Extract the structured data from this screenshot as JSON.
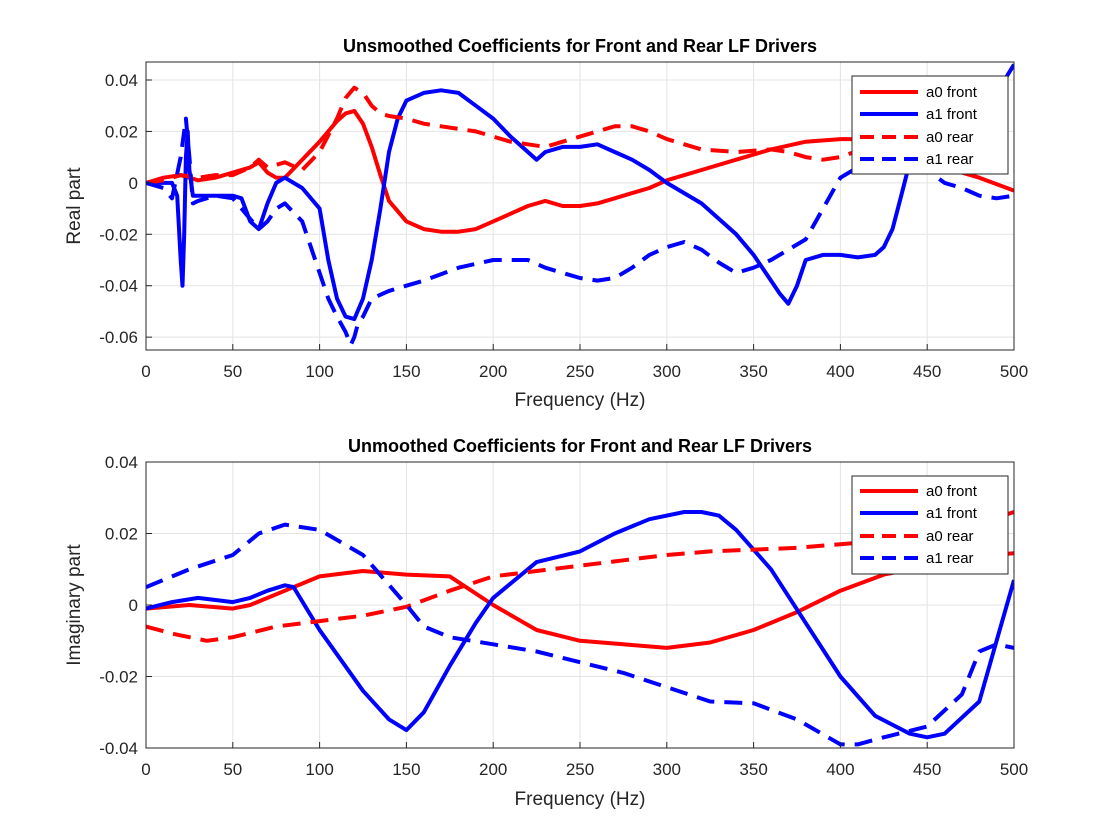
{
  "chart_data": [
    {
      "type": "line",
      "title": "Unsmoothed Coefficients for Front and Rear LF Drivers",
      "xlabel": "Frequency (Hz)",
      "ylabel": "Real part",
      "xlim": [
        0,
        500
      ],
      "ylim": [
        -0.065,
        0.047
      ],
      "xticks": [
        "0",
        "50",
        "100",
        "150",
        "200",
        "250",
        "300",
        "350",
        "400",
        "450",
        "500"
      ],
      "yticks": [
        "-0.06",
        "-0.04",
        "-0.02",
        "0",
        "0.02",
        "0.04"
      ],
      "grid": true,
      "legend_position": "top-right",
      "series": [
        {
          "name": "a0 front",
          "color": "#ff0000",
          "style": "solid",
          "x": [
            0,
            10,
            20,
            30,
            40,
            50,
            60,
            65,
            70,
            75,
            80,
            90,
            100,
            110,
            115,
            120,
            125,
            130,
            135,
            140,
            150,
            160,
            170,
            180,
            190,
            200,
            210,
            220,
            230,
            240,
            250,
            260,
            270,
            280,
            290,
            300,
            320,
            340,
            360,
            380,
            400,
            420,
            440,
            460,
            480,
            500
          ],
          "y": [
            0,
            0.002,
            0.003,
            0.001,
            0.002,
            0.004,
            0.006,
            0.008,
            0.004,
            0.002,
            0.002,
            0.009,
            0.016,
            0.024,
            0.027,
            0.028,
            0.023,
            0.014,
            0.003,
            -0.007,
            -0.015,
            -0.018,
            -0.019,
            -0.019,
            -0.018,
            -0.015,
            -0.012,
            -0.009,
            -0.007,
            -0.009,
            -0.009,
            -0.008,
            -0.006,
            -0.004,
            -0.002,
            0.001,
            0.005,
            0.009,
            0.013,
            0.016,
            0.017,
            0.017,
            0.01,
            0.006,
            0.002,
            -0.003
          ]
        },
        {
          "name": "a1 front",
          "color": "#0000ff",
          "style": "solid",
          "x": [
            0,
            10,
            15,
            18,
            20,
            21,
            22,
            23,
            24,
            25,
            27,
            30,
            40,
            50,
            55,
            60,
            65,
            70,
            75,
            80,
            90,
            100,
            105,
            110,
            115,
            120,
            125,
            130,
            135,
            140,
            145,
            150,
            160,
            170,
            180,
            190,
            200,
            210,
            220,
            225,
            230,
            240,
            250,
            260,
            270,
            280,
            290,
            300,
            320,
            340,
            350,
            360,
            365,
            370,
            375,
            380,
            390,
            400,
            410,
            420,
            425,
            430,
            435,
            440,
            445,
            450,
            470,
            490,
            500
          ],
          "y": [
            0,
            0,
            0,
            -0.005,
            -0.03,
            -0.04,
            -0.02,
            0.01,
            0.02,
            0.005,
            -0.005,
            -0.005,
            -0.005,
            -0.005,
            -0.006,
            -0.015,
            -0.018,
            -0.008,
            0,
            0.002,
            -0.002,
            -0.01,
            -0.03,
            -0.045,
            -0.052,
            -0.053,
            -0.045,
            -0.03,
            -0.01,
            0.012,
            0.025,
            0.032,
            0.035,
            0.036,
            0.035,
            0.03,
            0.025,
            0.018,
            0.012,
            0.009,
            0.012,
            0.014,
            0.014,
            0.015,
            0.012,
            0.009,
            0.005,
            0,
            -0.008,
            -0.02,
            -0.028,
            -0.038,
            -0.043,
            -0.047,
            -0.04,
            -0.03,
            -0.028,
            -0.028,
            -0.029,
            -0.028,
            -0.025,
            -0.018,
            -0.005,
            0.008,
            0.01,
            0.012,
            0.02,
            0.035,
            0.046
          ]
        },
        {
          "name": "a0 rear",
          "color": "#ff0000",
          "style": "dashed",
          "x": [
            0,
            10,
            20,
            30,
            40,
            50,
            60,
            65,
            70,
            80,
            90,
            100,
            110,
            115,
            120,
            125,
            130,
            135,
            140,
            150,
            160,
            170,
            180,
            190,
            200,
            210,
            220,
            230,
            240,
            250,
            260,
            270,
            280,
            290,
            300,
            320,
            340,
            360,
            370,
            380,
            390,
            400,
            420,
            440,
            460,
            480,
            500
          ],
          "y": [
            0,
            0.001,
            0.003,
            0.002,
            0.003,
            0.003,
            0.006,
            0.009,
            0.006,
            0.008,
            0.005,
            0.012,
            0.025,
            0.033,
            0.037,
            0.035,
            0.03,
            0.027,
            0.026,
            0.025,
            0.023,
            0.022,
            0.021,
            0.02,
            0.018,
            0.016,
            0.015,
            0.014,
            0.016,
            0.018,
            0.02,
            0.022,
            0.022,
            0.02,
            0.017,
            0.013,
            0.012,
            0.013,
            0.012,
            0.01,
            0.009,
            0.01,
            0.015,
            0.014,
            0.013,
            0.013,
            0.014
          ]
        },
        {
          "name": "a1 rear",
          "color": "#0000ff",
          "style": "dashed",
          "x": [
            0,
            10,
            15,
            20,
            23,
            25,
            27,
            30,
            40,
            50,
            55,
            60,
            65,
            70,
            75,
            80,
            90,
            100,
            105,
            110,
            115,
            118,
            120,
            122,
            125,
            130,
            140,
            150,
            160,
            180,
            200,
            220,
            230,
            240,
            250,
            260,
            270,
            280,
            290,
            300,
            310,
            320,
            330,
            340,
            350,
            360,
            370,
            380,
            390,
            400,
            420,
            440,
            450,
            460,
            470,
            480,
            490,
            500
          ],
          "y": [
            0,
            -0.002,
            -0.006,
            0.01,
            0.025,
            0.01,
            -0.008,
            -0.007,
            -0.005,
            -0.006,
            -0.01,
            -0.014,
            -0.018,
            -0.015,
            -0.01,
            -0.008,
            -0.015,
            -0.035,
            -0.045,
            -0.052,
            -0.058,
            -0.063,
            -0.06,
            -0.055,
            -0.052,
            -0.045,
            -0.042,
            -0.04,
            -0.038,
            -0.033,
            -0.03,
            -0.03,
            -0.033,
            -0.035,
            -0.037,
            -0.038,
            -0.037,
            -0.033,
            -0.028,
            -0.025,
            -0.023,
            -0.026,
            -0.031,
            -0.035,
            -0.033,
            -0.03,
            -0.026,
            -0.022,
            -0.01,
            0.002,
            0.01,
            0.008,
            0.005,
            0,
            -0.002,
            -0.005,
            -0.006,
            -0.005
          ]
        }
      ]
    },
    {
      "type": "line",
      "title": "Unmoothed Coefficients for Front and Rear LF Drivers",
      "xlabel": "Frequency (Hz)",
      "ylabel": "Imaginary part",
      "xlim": [
        0,
        500
      ],
      "ylim": [
        -0.04,
        0.04
      ],
      "xticks": [
        "0",
        "50",
        "100",
        "150",
        "200",
        "250",
        "300",
        "350",
        "400",
        "450",
        "500"
      ],
      "yticks": [
        "-0.04",
        "-0.02",
        "0",
        "0.02",
        "0.04"
      ],
      "grid": true,
      "legend_position": "top-right",
      "series": [
        {
          "name": "a0 front",
          "color": "#ff0000",
          "style": "solid",
          "x": [
            0,
            25,
            50,
            60,
            75,
            100,
            125,
            150,
            175,
            200,
            225,
            250,
            275,
            300,
            325,
            350,
            375,
            400,
            425,
            450,
            475,
            500
          ],
          "y": [
            -0.001,
            0,
            -0.001,
            0,
            0.003,
            0.008,
            0.0095,
            0.0085,
            0.008,
            0,
            -0.007,
            -0.01,
            -0.011,
            -0.012,
            -0.0105,
            -0.007,
            -0.002,
            0.004,
            0.0085,
            0.011,
            0.0135,
            0.0145
          ]
        },
        {
          "name": "a1 front",
          "color": "#0000ff",
          "style": "solid",
          "x": [
            0,
            15,
            30,
            50,
            60,
            70,
            80,
            85,
            100,
            125,
            140,
            150,
            160,
            175,
            190,
            200,
            225,
            250,
            270,
            290,
            310,
            320,
            330,
            340,
            360,
            380,
            400,
            420,
            440,
            450,
            460,
            480,
            490,
            500
          ],
          "y": [
            -0.001,
            0.0008,
            0.002,
            0.0008,
            0.002,
            0.004,
            0.0055,
            0.005,
            -0.007,
            -0.024,
            -0.032,
            -0.035,
            -0.03,
            -0.017,
            -0.005,
            0.002,
            0.012,
            0.015,
            0.02,
            0.024,
            0.026,
            0.026,
            0.025,
            0.021,
            0.01,
            -0.005,
            -0.02,
            -0.031,
            -0.036,
            -0.037,
            -0.036,
            -0.027,
            -0.01,
            0.007
          ]
        },
        {
          "name": "a0 rear",
          "color": "#ff0000",
          "style": "dashed",
          "x": [
            0,
            15,
            35,
            50,
            75,
            100,
            125,
            150,
            175,
            200,
            225,
            250,
            275,
            300,
            325,
            350,
            375,
            400,
            425,
            450,
            475,
            500
          ],
          "y": [
            -0.006,
            -0.008,
            -0.01,
            -0.009,
            -0.006,
            -0.0045,
            -0.003,
            -0.0005,
            0.004,
            0.008,
            0.0095,
            0.011,
            0.0125,
            0.014,
            0.015,
            0.0155,
            0.016,
            0.017,
            0.018,
            0.019,
            0.022,
            0.026
          ]
        },
        {
          "name": "a1 rear",
          "color": "#0000ff",
          "style": "dashed",
          "x": [
            0,
            25,
            50,
            65,
            80,
            100,
            125,
            150,
            160,
            175,
            200,
            225,
            250,
            275,
            300,
            325,
            350,
            375,
            400,
            410,
            425,
            450,
            470,
            480,
            490,
            500
          ],
          "y": [
            0.005,
            0.01,
            0.014,
            0.02,
            0.0225,
            0.021,
            0.014,
            0,
            -0.006,
            -0.009,
            -0.011,
            -0.013,
            -0.016,
            -0.019,
            -0.023,
            -0.027,
            -0.0275,
            -0.032,
            -0.039,
            -0.039,
            -0.037,
            -0.034,
            -0.025,
            -0.013,
            -0.011,
            -0.012
          ]
        }
      ]
    }
  ]
}
